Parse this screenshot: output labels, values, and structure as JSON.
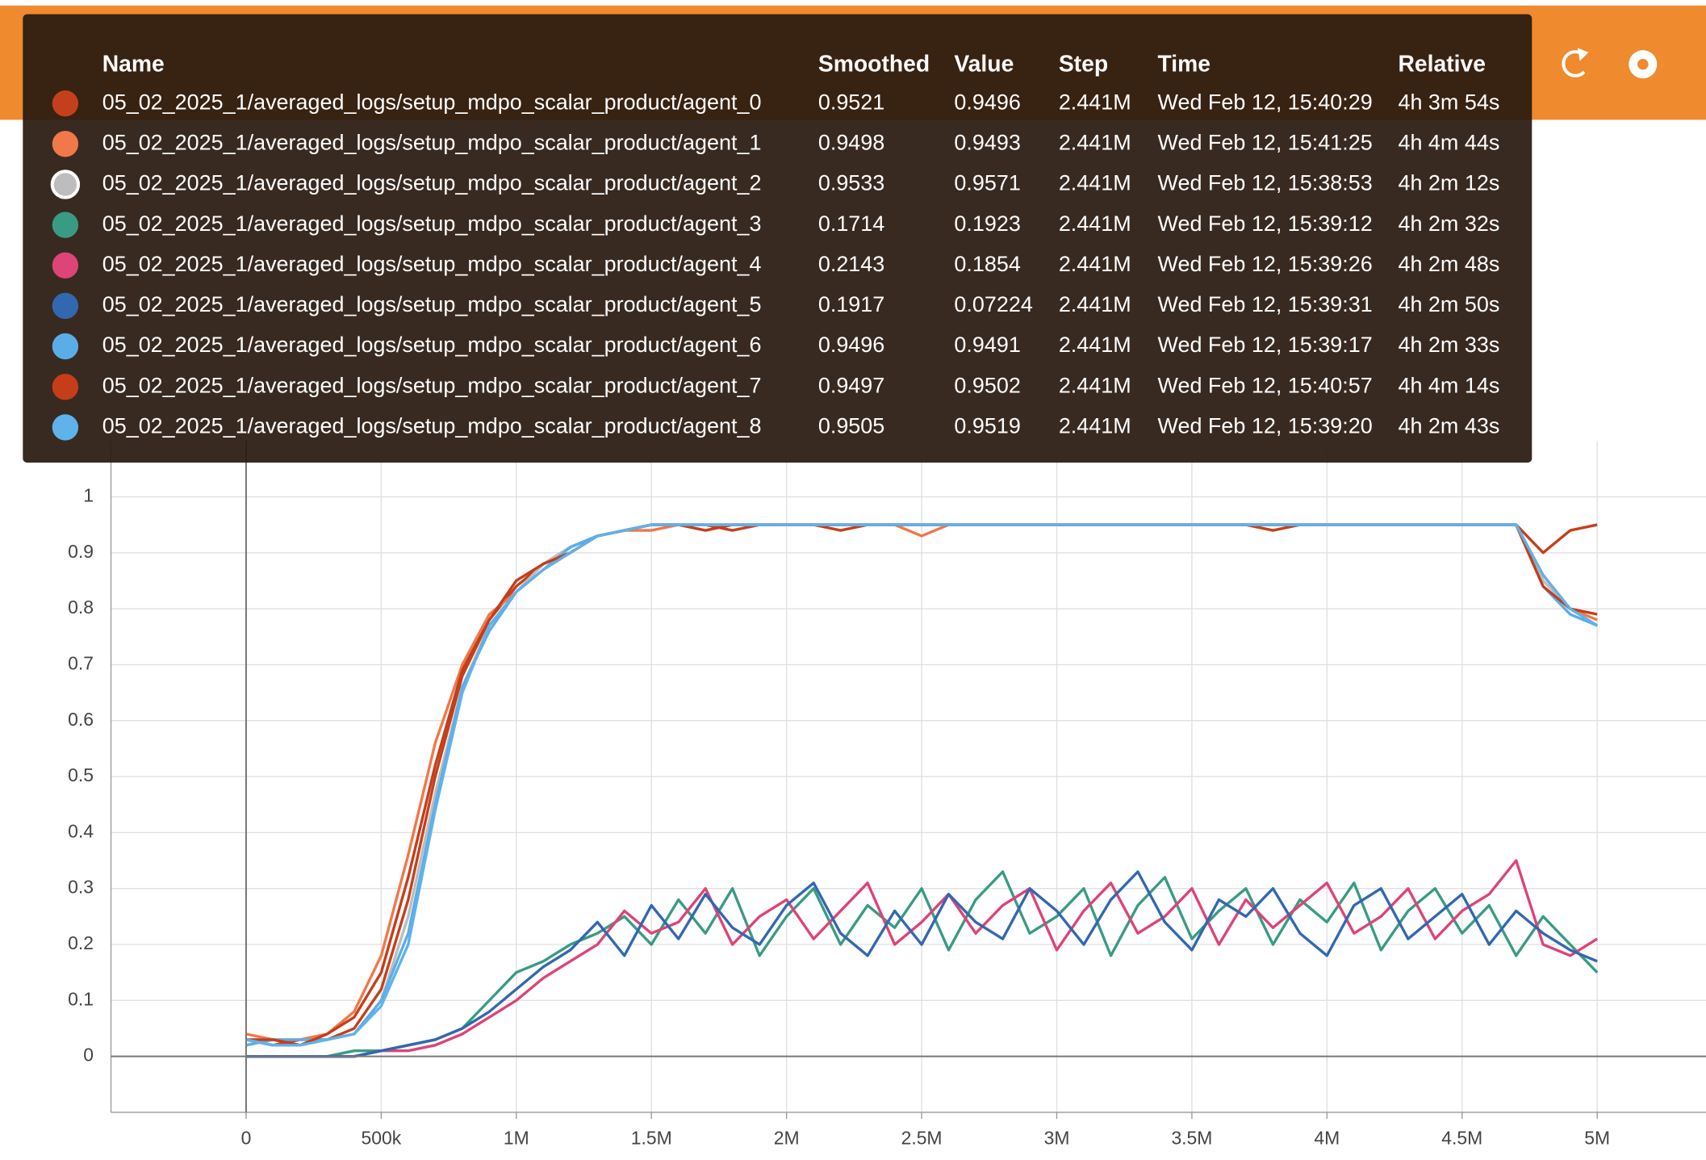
{
  "chart_data": {
    "type": "line",
    "x": [
      0,
      100000,
      200000,
      300000,
      400000,
      500000,
      600000,
      700000,
      800000,
      900000,
      1000000,
      1100000,
      1200000,
      1300000,
      1400000,
      1500000,
      1600000,
      1700000,
      1800000,
      1900000,
      2000000,
      2100000,
      2200000,
      2300000,
      2400000,
      2500000,
      2600000,
      2700000,
      2800000,
      2900000,
      3000000,
      3100000,
      3200000,
      3300000,
      3400000,
      3500000,
      3600000,
      3700000,
      3800000,
      3900000,
      4000000,
      4100000,
      4200000,
      4300000,
      4400000,
      4500000,
      4600000,
      4700000,
      4800000,
      4900000,
      5000000
    ],
    "series": [
      {
        "name": "05_02_2025_1/averaged_logs/setup_mdpo_scalar_product/agent_0",
        "color": "#c4401d",
        "values": [
          0.03,
          0.02,
          0.03,
          0.03,
          0.05,
          0.12,
          0.28,
          0.5,
          0.68,
          0.78,
          0.84,
          0.88,
          0.91,
          0.93,
          0.94,
          0.95,
          0.95,
          0.95,
          0.94,
          0.95,
          0.95,
          0.95,
          0.94,
          0.95,
          0.95,
          0.95,
          0.95,
          0.95,
          0.95,
          0.95,
          0.95,
          0.95,
          0.95,
          0.95,
          0.95,
          0.95,
          0.95,
          0.95,
          0.94,
          0.95,
          0.95,
          0.95,
          0.95,
          0.95,
          0.95,
          0.95,
          0.95,
          0.95,
          0.9,
          0.94,
          0.95
        ]
      },
      {
        "name": "05_02_2025_1/averaged_logs/setup_mdpo_scalar_product/agent_1",
        "color": "#f0784a",
        "values": [
          0.04,
          0.03,
          0.03,
          0.04,
          0.08,
          0.18,
          0.36,
          0.56,
          0.7,
          0.79,
          0.83,
          0.87,
          0.9,
          0.93,
          0.94,
          0.94,
          0.95,
          0.95,
          0.95,
          0.95,
          0.95,
          0.95,
          0.95,
          0.95,
          0.95,
          0.93,
          0.95,
          0.95,
          0.95,
          0.95,
          0.95,
          0.95,
          0.95,
          0.95,
          0.95,
          0.95,
          0.95,
          0.95,
          0.95,
          0.95,
          0.95,
          0.95,
          0.95,
          0.95,
          0.95,
          0.95,
          0.95,
          0.95,
          0.86,
          0.8,
          0.78
        ]
      },
      {
        "name": "05_02_2025_1/averaged_logs/setup_mdpo_scalar_product/agent_2",
        "color": "#bdbdbd",
        "values": [
          0.03,
          0.03,
          0.02,
          0.03,
          0.04,
          0.1,
          0.25,
          0.47,
          0.66,
          0.77,
          0.83,
          0.88,
          0.91,
          0.93,
          0.94,
          0.95,
          0.95,
          0.95,
          0.95,
          0.95,
          0.95,
          0.95,
          0.95,
          0.95,
          0.95,
          0.95,
          0.95,
          0.95,
          0.95,
          0.95,
          0.95,
          0.95,
          0.95,
          0.95,
          0.95,
          0.95,
          0.95,
          0.95,
          0.95,
          0.95,
          0.95,
          0.95,
          0.95,
          0.95,
          0.95,
          0.95,
          0.95,
          0.95,
          0.85,
          0.8,
          0.77
        ]
      },
      {
        "name": "05_02_2025_1/averaged_logs/setup_mdpo_scalar_product/agent_3",
        "color": "#3a9b84",
        "values": [
          0,
          0,
          0,
          0,
          0.01,
          0.01,
          0.02,
          0.03,
          0.05,
          0.1,
          0.15,
          0.17,
          0.2,
          0.22,
          0.25,
          0.2,
          0.28,
          0.22,
          0.3,
          0.18,
          0.25,
          0.3,
          0.2,
          0.27,
          0.23,
          0.3,
          0.19,
          0.28,
          0.33,
          0.22,
          0.25,
          0.3,
          0.18,
          0.27,
          0.32,
          0.21,
          0.26,
          0.3,
          0.2,
          0.28,
          0.24,
          0.31,
          0.19,
          0.26,
          0.3,
          0.22,
          0.27,
          0.18,
          0.25,
          0.2,
          0.15
        ]
      },
      {
        "name": "05_02_2025_1/averaged_logs/setup_mdpo_scalar_product/agent_4",
        "color": "#dd4477",
        "values": [
          0,
          0,
          0,
          0,
          0,
          0.01,
          0.01,
          0.02,
          0.04,
          0.07,
          0.1,
          0.14,
          0.17,
          0.2,
          0.26,
          0.22,
          0.24,
          0.3,
          0.2,
          0.25,
          0.28,
          0.21,
          0.26,
          0.31,
          0.2,
          0.24,
          0.29,
          0.22,
          0.27,
          0.3,
          0.19,
          0.26,
          0.31,
          0.22,
          0.25,
          0.3,
          0.2,
          0.28,
          0.23,
          0.27,
          0.31,
          0.22,
          0.25,
          0.3,
          0.21,
          0.26,
          0.29,
          0.35,
          0.2,
          0.18,
          0.21
        ]
      },
      {
        "name": "05_02_2025_1/averaged_logs/setup_mdpo_scalar_product/agent_5",
        "color": "#3368b0",
        "values": [
          0,
          0,
          0,
          0,
          0,
          0.01,
          0.02,
          0.03,
          0.05,
          0.08,
          0.12,
          0.16,
          0.19,
          0.24,
          0.18,
          0.27,
          0.21,
          0.29,
          0.23,
          0.2,
          0.27,
          0.31,
          0.22,
          0.18,
          0.26,
          0.2,
          0.29,
          0.24,
          0.21,
          0.3,
          0.26,
          0.2,
          0.28,
          0.33,
          0.24,
          0.19,
          0.28,
          0.25,
          0.3,
          0.22,
          0.18,
          0.27,
          0.3,
          0.21,
          0.25,
          0.29,
          0.2,
          0.26,
          0.22,
          0.19,
          0.17
        ]
      },
      {
        "name": "05_02_2025_1/averaged_logs/setup_mdpo_scalar_product/agent_6",
        "color": "#5aaee8",
        "values": [
          0.02,
          0.03,
          0.03,
          0.03,
          0.04,
          0.1,
          0.22,
          0.45,
          0.66,
          0.76,
          0.83,
          0.87,
          0.91,
          0.93,
          0.94,
          0.95,
          0.95,
          0.95,
          0.95,
          0.95,
          0.95,
          0.95,
          0.95,
          0.95,
          0.95,
          0.95,
          0.95,
          0.95,
          0.95,
          0.95,
          0.95,
          0.95,
          0.95,
          0.95,
          0.95,
          0.95,
          0.95,
          0.95,
          0.95,
          0.95,
          0.95,
          0.95,
          0.95,
          0.95,
          0.95,
          0.95,
          0.95,
          0.95,
          0.84,
          0.79,
          0.77
        ]
      },
      {
        "name": "05_02_2025_1/averaged_logs/setup_mdpo_scalar_product/agent_7",
        "color": "#c63d1a",
        "values": [
          0.03,
          0.03,
          0.02,
          0.04,
          0.07,
          0.15,
          0.32,
          0.52,
          0.69,
          0.78,
          0.85,
          0.88,
          0.9,
          0.93,
          0.94,
          0.95,
          0.95,
          0.94,
          0.95,
          0.95,
          0.95,
          0.95,
          0.95,
          0.95,
          0.95,
          0.95,
          0.95,
          0.95,
          0.95,
          0.95,
          0.95,
          0.95,
          0.95,
          0.95,
          0.95,
          0.95,
          0.95,
          0.95,
          0.95,
          0.95,
          0.95,
          0.95,
          0.95,
          0.95,
          0.95,
          0.95,
          0.95,
          0.95,
          0.84,
          0.8,
          0.79
        ]
      },
      {
        "name": "05_02_2025_1/averaged_logs/setup_mdpo_scalar_product/agent_8",
        "color": "#5eb3ea",
        "values": [
          0.03,
          0.02,
          0.02,
          0.03,
          0.04,
          0.09,
          0.2,
          0.44,
          0.65,
          0.77,
          0.83,
          0.87,
          0.9,
          0.93,
          0.94,
          0.95,
          0.95,
          0.95,
          0.95,
          0.95,
          0.95,
          0.95,
          0.95,
          0.95,
          0.95,
          0.95,
          0.95,
          0.95,
          0.95,
          0.95,
          0.95,
          0.95,
          0.95,
          0.95,
          0.95,
          0.95,
          0.95,
          0.95,
          0.95,
          0.95,
          0.95,
          0.95,
          0.95,
          0.95,
          0.95,
          0.95,
          0.95,
          0.95,
          0.86,
          0.8,
          0.77
        ]
      }
    ],
    "xlim": [
      -500000,
      5400000
    ],
    "ylim": [
      -0.1,
      1.1
    ],
    "xticks": [
      0,
      {
        "value": 500000,
        "label": "500k"
      },
      {
        "value": 1000000,
        "label": "1M"
      },
      {
        "value": 1500000,
        "label": "1.5M"
      },
      {
        "value": 2000000,
        "label": "2M"
      },
      {
        "value": 2500000,
        "label": "2.5M"
      },
      {
        "value": 3000000,
        "label": "3M"
      },
      {
        "value": 3500000,
        "label": "3.5M"
      },
      {
        "value": 4000000,
        "label": "4M"
      },
      {
        "value": 4500000,
        "label": "4.5M"
      },
      {
        "value": 5000000,
        "label": "5M"
      }
    ],
    "yticks": [
      0,
      0.1,
      0.2,
      0.3,
      0.4,
      0.5,
      0.6,
      0.7,
      0.8,
      0.9,
      1
    ],
    "grid": true
  },
  "tooltip": {
    "headers": [
      "Name",
      "Smoothed",
      "Value",
      "Step",
      "Time",
      "Relative"
    ],
    "rows": [
      [
        "05_02_2025_1/averaged_logs/setup_mdpo_scalar_product/agent_0",
        0.9521,
        0.9496,
        "2.441M",
        "Wed Feb 12, 15:40:29",
        "4h 3m 54s"
      ],
      [
        "05_02_2025_1/averaged_logs/setup_mdpo_scalar_product/agent_1",
        0.9498,
        0.9493,
        "2.441M",
        "Wed Feb 12, 15:41:25",
        "4h 4m 44s"
      ],
      [
        "05_02_2025_1/averaged_logs/setup_mdpo_scalar_product/agent_2",
        0.9533,
        0.9571,
        "2.441M",
        "Wed Feb 12, 15:38:53",
        "4h 2m 12s"
      ],
      [
        "05_02_2025_1/averaged_logs/setup_mdpo_scalar_product/agent_3",
        0.1714,
        0.1923,
        "2.441M",
        "Wed Feb 12, 15:39:12",
        "4h 2m 32s"
      ],
      [
        "05_02_2025_1/averaged_logs/setup_mdpo_scalar_product/agent_4",
        0.2143,
        0.1854,
        "2.441M",
        "Wed Feb 12, 15:39:26",
        "4h 2m 48s"
      ],
      [
        "05_02_2025_1/averaged_logs/setup_mdpo_scalar_product/agent_5",
        0.1917,
        0.07224,
        "2.441M",
        "Wed Feb 12, 15:39:31",
        "4h 2m 50s"
      ],
      [
        "05_02_2025_1/averaged_logs/setup_mdpo_scalar_product/agent_6",
        0.9496,
        0.9491,
        "2.441M",
        "Wed Feb 12, 15:39:17",
        "4h 2m 33s"
      ],
      [
        "05_02_2025_1/averaged_logs/setup_mdpo_scalar_product/agent_7",
        0.9497,
        0.9502,
        "2.441M",
        "Wed Feb 12, 15:40:57",
        "4h 4m 14s"
      ],
      [
        "05_02_2025_1/averaged_logs/setup_mdpo_scalar_product/agent_8",
        0.9505,
        0.9519,
        "2.441M",
        "Wed Feb 12, 15:39:20",
        "4h 2m 43s"
      ]
    ]
  }
}
